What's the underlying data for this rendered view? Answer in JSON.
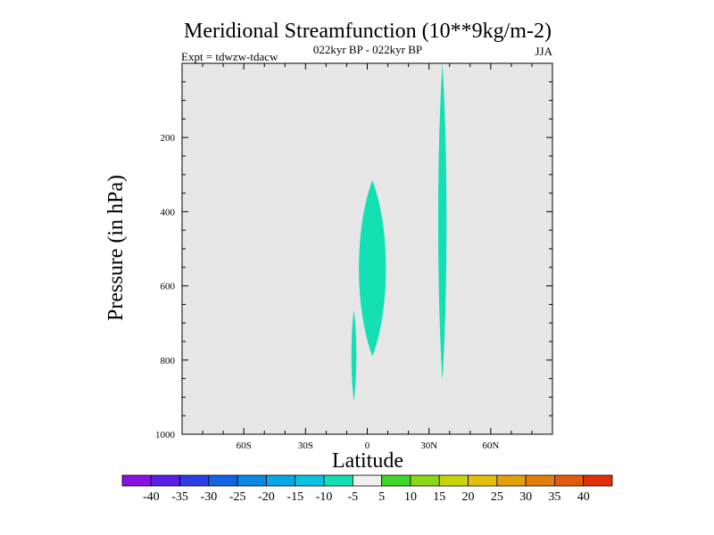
{
  "chart_data": {
    "type": "contour",
    "title": "Meridional Streamfunction (10**9kg/m-2)",
    "subtitle_center": "022kyr BP - 022kyr BP",
    "subtitle_left": "Expt = tdwzw-tdacw",
    "subtitle_right": "JJA",
    "xlabel": "Latitude",
    "ylabel": "Pressure (in hPa)",
    "xlim": [
      -90,
      90
    ],
    "ylim": [
      1000,
      0
    ],
    "x_ticks": [
      {
        "value": -60,
        "label": "60S"
      },
      {
        "value": -30,
        "label": "30S"
      },
      {
        "value": 0,
        "label": "0"
      },
      {
        "value": 30,
        "label": "30N"
      },
      {
        "value": 60,
        "label": "60N"
      }
    ],
    "y_ticks": [
      {
        "value": 200,
        "label": "200"
      },
      {
        "value": 400,
        "label": "400"
      },
      {
        "value": 600,
        "label": "600"
      },
      {
        "value": 800,
        "label": "800"
      },
      {
        "value": 1000,
        "label": "1000"
      }
    ],
    "background_color": "#e6e6e6",
    "regions": [
      {
        "level": "-10 to -5",
        "color": "#12e0b4",
        "lat_center": -6.5,
        "lat_halfwidth": 1.2,
        "p_top": 665,
        "p_bottom": 910
      },
      {
        "level": "-10 to -5",
        "color": "#12e0b4",
        "lat_center": 2.5,
        "lat_halfwidth": 6.5,
        "p_top": 315,
        "p_bottom": 790
      },
      {
        "level": "-10 to -5",
        "color": "#12e0b4",
        "lat_center": 36.5,
        "lat_halfwidth": 2.0,
        "p_top": 0,
        "p_bottom": 855
      }
    ],
    "colorbar": {
      "labels": [
        "-40",
        "-35",
        "-30",
        "-25",
        "-20",
        "-15",
        "-10",
        "-5",
        "5",
        "10",
        "15",
        "20",
        "25",
        "30",
        "35",
        "40"
      ],
      "colors": [
        "#8a10e6",
        "#5a1ee6",
        "#2e3ce6",
        "#1464e6",
        "#0a88e6",
        "#06a8e6",
        "#08c4e0",
        "#12e0b4",
        "#f0f0f0",
        "#3ed628",
        "#8cd814",
        "#c8d40a",
        "#e4c00a",
        "#e4a00a",
        "#e47e0a",
        "#e45a0a",
        "#e0300a"
      ]
    }
  }
}
